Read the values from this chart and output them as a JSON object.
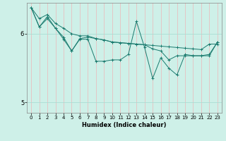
{
  "xlabel": "Humidex (Indice chaleur)",
  "bg_color": "#cef0e8",
  "grid_color": "#aaddd4",
  "line_color": "#1a7a6e",
  "xlim": [
    -0.5,
    23.5
  ],
  "ylim": [
    4.85,
    6.45
  ],
  "yticks": [
    5,
    6
  ],
  "xticks": [
    0,
    1,
    2,
    3,
    4,
    5,
    6,
    7,
    8,
    9,
    10,
    11,
    12,
    13,
    14,
    15,
    16,
    17,
    18,
    19,
    20,
    21,
    22,
    23
  ],
  "series": [
    [
      6.38,
      6.22,
      6.28,
      6.15,
      6.08,
      6.0,
      5.97,
      5.97,
      5.93,
      5.91,
      5.88,
      5.87,
      5.86,
      5.85,
      5.84,
      5.83,
      5.82,
      5.81,
      5.8,
      5.79,
      5.78,
      5.77,
      5.85,
      5.85
    ],
    [
      6.38,
      6.1,
      6.22,
      6.08,
      5.92,
      5.75,
      5.92,
      5.92,
      5.6,
      5.6,
      5.62,
      5.62,
      5.7,
      6.18,
      5.8,
      5.35,
      5.65,
      5.5,
      5.4,
      5.7,
      5.68,
      5.68,
      5.68,
      5.88
    ],
    [
      6.38,
      6.1,
      6.25,
      6.08,
      5.95,
      5.75,
      5.93,
      5.95,
      5.93,
      5.91,
      5.88,
      5.87,
      5.86,
      5.85,
      5.84,
      5.78,
      5.75,
      5.62,
      5.68,
      5.68,
      5.68,
      5.68,
      5.7,
      5.88
    ]
  ]
}
